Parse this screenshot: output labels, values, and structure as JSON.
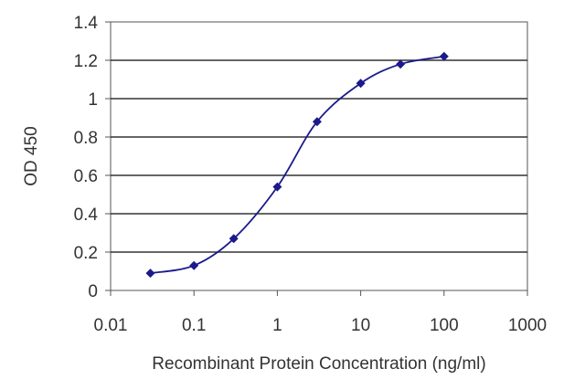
{
  "chart_data": {
    "type": "line",
    "title": "",
    "xlabel": "Recombinant Protein Concentration (ng/ml)",
    "ylabel": "OD 450",
    "x_scale": "log",
    "xlim": [
      0.01,
      1000
    ],
    "ylim": [
      0,
      1.4
    ],
    "x_ticks": [
      0.01,
      0.1,
      1,
      10,
      100,
      1000
    ],
    "x_tick_labels": [
      "0.01",
      "0.1",
      "1",
      "10",
      "100",
      "1000"
    ],
    "y_ticks": [
      0,
      0.2,
      0.4,
      0.6,
      0.8,
      1,
      1.2,
      1.4
    ],
    "y_tick_labels": [
      "0",
      "0.2",
      "0.4",
      "0.6",
      "0.8",
      "1",
      "1.2",
      "1.4"
    ],
    "grid": "horizontal",
    "legend": "none",
    "series": [
      {
        "x": [
          0.03,
          0.1,
          0.3,
          1,
          3,
          10,
          30,
          100
        ],
        "y": [
          0.09,
          0.13,
          0.27,
          0.54,
          0.88,
          1.08,
          1.18,
          1.22
        ],
        "color": "#1a1a8c",
        "marker": "diamond"
      }
    ]
  },
  "colors": {
    "plot_background": "#ffffff",
    "grid": "#333333",
    "frame": "#555555",
    "series": "#1a1a8c"
  }
}
